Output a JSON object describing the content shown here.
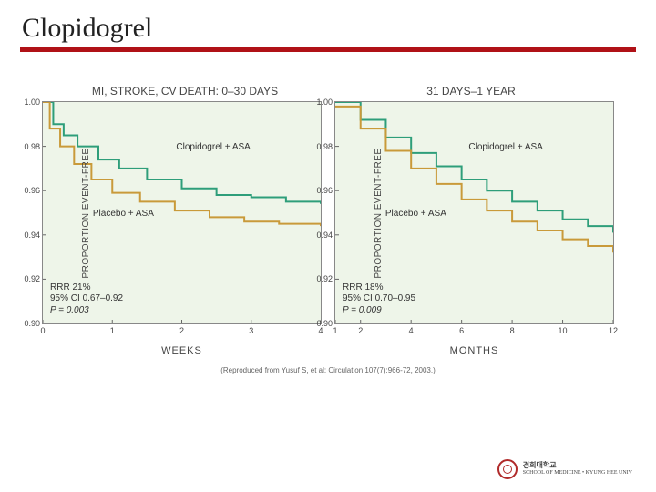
{
  "title": "Clopidogrel",
  "title_underline_color": "#b01117",
  "figure": {
    "panel_bg": "#eef5e9",
    "axis_color": "#666666",
    "grid_color": "#e0e0e0",
    "series_colors": {
      "clopidogrel": "#2e9e7a",
      "placebo": "#c99a3a"
    },
    "line_width": 2,
    "left": {
      "title": "MI, STROKE, CV DEATH: 0–30 DAYS",
      "ylabel": "PROPORTION EVENT-FREE",
      "xlabel": "WEEKS",
      "ylim": [
        0.9,
        1.0
      ],
      "yticks": [
        0.9,
        0.92,
        0.94,
        0.96,
        0.98,
        1.0
      ],
      "xlim": [
        0,
        4
      ],
      "xticks": [
        0,
        1,
        2,
        3,
        4
      ],
      "clopidogrel_label": "Clopidogrel + ASA",
      "placebo_label": "Placebo + ASA",
      "clopidogrel_series": [
        [
          0.0,
          1.0
        ],
        [
          0.15,
          0.99
        ],
        [
          0.3,
          0.985
        ],
        [
          0.5,
          0.98
        ],
        [
          0.8,
          0.974
        ],
        [
          1.1,
          0.97
        ],
        [
          1.5,
          0.965
        ],
        [
          2.0,
          0.961
        ],
        [
          2.5,
          0.958
        ],
        [
          3.0,
          0.957
        ],
        [
          3.5,
          0.955
        ],
        [
          4.0,
          0.954
        ]
      ],
      "placebo_series": [
        [
          0.0,
          1.0
        ],
        [
          0.1,
          0.988
        ],
        [
          0.25,
          0.98
        ],
        [
          0.45,
          0.972
        ],
        [
          0.7,
          0.965
        ],
        [
          1.0,
          0.959
        ],
        [
          1.4,
          0.955
        ],
        [
          1.9,
          0.951
        ],
        [
          2.4,
          0.948
        ],
        [
          2.9,
          0.946
        ],
        [
          3.4,
          0.945
        ],
        [
          4.0,
          0.944
        ]
      ],
      "stats": {
        "line1": "RRR 21%",
        "line2": "95% CI 0.67–0.92",
        "line3": "P = 0.003"
      }
    },
    "right": {
      "title": "31 DAYS–1 YEAR",
      "ylabel": "PROPORTION EVENT-FREE",
      "xlabel": "MONTHS",
      "ylim": [
        0.9,
        1.0
      ],
      "yticks": [
        0.9,
        0.92,
        0.94,
        0.96,
        0.98,
        1.0
      ],
      "xlim": [
        1,
        12
      ],
      "xticks": [
        1,
        2,
        4,
        6,
        8,
        10,
        12
      ],
      "clopidogrel_label": "Clopidogrel + ASA",
      "placebo_label": "Placebo + ASA",
      "clopidogrel_series": [
        [
          1.0,
          1.0
        ],
        [
          2.0,
          0.992
        ],
        [
          3.0,
          0.984
        ],
        [
          4.0,
          0.977
        ],
        [
          5.0,
          0.971
        ],
        [
          6.0,
          0.965
        ],
        [
          7.0,
          0.96
        ],
        [
          8.0,
          0.955
        ],
        [
          9.0,
          0.951
        ],
        [
          10.0,
          0.947
        ],
        [
          11.0,
          0.944
        ],
        [
          12.0,
          0.941
        ]
      ],
      "placebo_series": [
        [
          1.0,
          0.998
        ],
        [
          2.0,
          0.988
        ],
        [
          3.0,
          0.978
        ],
        [
          4.0,
          0.97
        ],
        [
          5.0,
          0.963
        ],
        [
          6.0,
          0.956
        ],
        [
          7.0,
          0.951
        ],
        [
          8.0,
          0.946
        ],
        [
          9.0,
          0.942
        ],
        [
          10.0,
          0.938
        ],
        [
          11.0,
          0.935
        ],
        [
          12.0,
          0.932
        ]
      ],
      "stats": {
        "line1": "RRR 18%",
        "line2": "95% CI 0.70–0.95",
        "line3": "P = 0.009"
      }
    },
    "citation": "(Reproduced from Yusuf S, et al: Circulation 107(7):966-72, 2003.)"
  },
  "footer": {
    "uni_kr": "경희대학교",
    "uni_en1": "KYUNG HEE UNIVERSITY",
    "uni_en2": "SCHOOL OF MEDICINE • KYUNG HEE UNIV"
  }
}
